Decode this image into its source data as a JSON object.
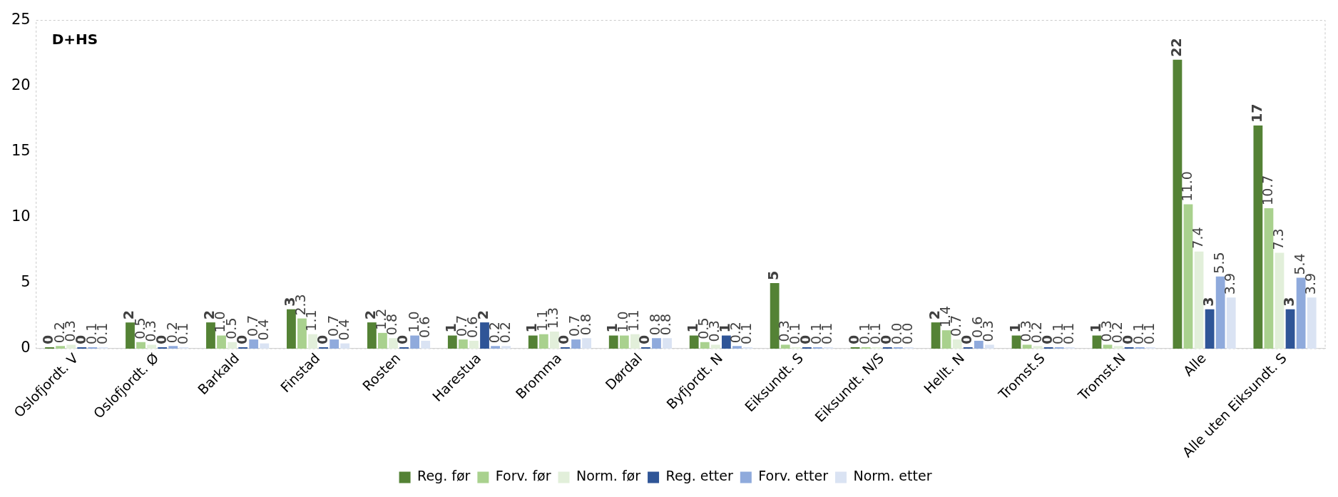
{
  "chart_data": {
    "type": "bar",
    "title": "D+HS",
    "categories": [
      "Oslofjordt. V",
      "Oslofjordt. Ø",
      "Barkald",
      "Finstad",
      "Rosten",
      "Harestua",
      "Bromma",
      "Dørdal",
      "Byfjordt. N",
      "Eiksundt. S",
      "Eiksundt. N/S",
      "Hellt. N",
      "Tromst.S",
      "Tromst.N",
      "Alle",
      "Alle uten Eiksundt. S"
    ],
    "series": [
      {
        "name": "Reg. før",
        "color": "#548235",
        "values": [
          0,
          2,
          2,
          3,
          2,
          1,
          1,
          1,
          1,
          5,
          0,
          2,
          1,
          1,
          22,
          17
        ],
        "value_labels": [
          "0",
          "2",
          "2",
          "3",
          "2",
          "1",
          "1",
          "1",
          "1",
          "5",
          "0",
          "2",
          "1",
          "1",
          "22",
          "17"
        ]
      },
      {
        "name": "Forv. før",
        "color": "#a9d18e",
        "values": [
          0.2,
          0.5,
          1.0,
          2.3,
          1.2,
          0.7,
          1.1,
          1.0,
          0.5,
          0.3,
          0.1,
          1.4,
          0.3,
          0.3,
          11.0,
          10.7
        ],
        "value_labels": [
          "0.2",
          "0.5",
          "1.0",
          "2.3",
          "1.2",
          "0.7",
          "1.1",
          "1.0",
          "0.5",
          "0.3",
          "0.1",
          "1.4",
          "0.3",
          "0.3",
          "11.0",
          "10.7"
        ]
      },
      {
        "name": "Norm. før",
        "color": "#e2efda",
        "values": [
          0.3,
          0.3,
          0.5,
          1.1,
          0.8,
          0.6,
          1.3,
          1.1,
          0.3,
          0.1,
          0.1,
          0.7,
          0.2,
          0.2,
          7.4,
          7.3
        ],
        "value_labels": [
          "0.3",
          "0.3",
          "0.5",
          "1.1",
          "0.8",
          "0.6",
          "1.3",
          "1.1",
          "0.3",
          "0.1",
          "0.1",
          "0.7",
          "0.2",
          "0.2",
          "7.4",
          "7.3"
        ]
      },
      {
        "name": "Reg. etter",
        "color": "#2f5597",
        "values": [
          0,
          0,
          0,
          0,
          0,
          2,
          0,
          0,
          1,
          0,
          0,
          0,
          0,
          0,
          3,
          3
        ],
        "value_labels": [
          "0",
          "0",
          "0",
          "0",
          "0",
          "2",
          "0",
          "0",
          "1",
          "0",
          "0",
          "0",
          "0",
          "0",
          "3",
          "3"
        ]
      },
      {
        "name": "Forv. etter",
        "color": "#8faadc",
        "values": [
          0.1,
          0.2,
          0.7,
          0.7,
          1.0,
          0.2,
          0.7,
          0.8,
          0.2,
          0.1,
          0.0,
          0.6,
          0.1,
          0.1,
          5.5,
          5.4
        ],
        "value_labels": [
          "0.1",
          "0.2",
          "0.7",
          "0.7",
          "1.0",
          "0.2",
          "0.7",
          "0.8",
          "0.2",
          "0.1",
          "0.0",
          "0.6",
          "0.1",
          "0.1",
          "5.5",
          "5.4"
        ]
      },
      {
        "name": "Norm. etter",
        "color": "#dae3f3",
        "values": [
          0.1,
          0.1,
          0.4,
          0.4,
          0.6,
          0.2,
          0.8,
          0.8,
          0.1,
          0.1,
          0.0,
          0.3,
          0.1,
          0.1,
          3.9,
          3.9
        ],
        "value_labels": [
          "0.1",
          "0.1",
          "0.4",
          "0.4",
          "0.6",
          "0.2",
          "0.8",
          "0.8",
          "0.1",
          "0.1",
          "0.0",
          "0.3",
          "0.1",
          "0.1",
          "3.9",
          "3.9"
        ]
      }
    ],
    "ylim": [
      0,
      25
    ],
    "yticks": [
      0,
      5,
      10,
      15,
      20,
      25
    ],
    "grid": false,
    "legend": "bottom"
  }
}
